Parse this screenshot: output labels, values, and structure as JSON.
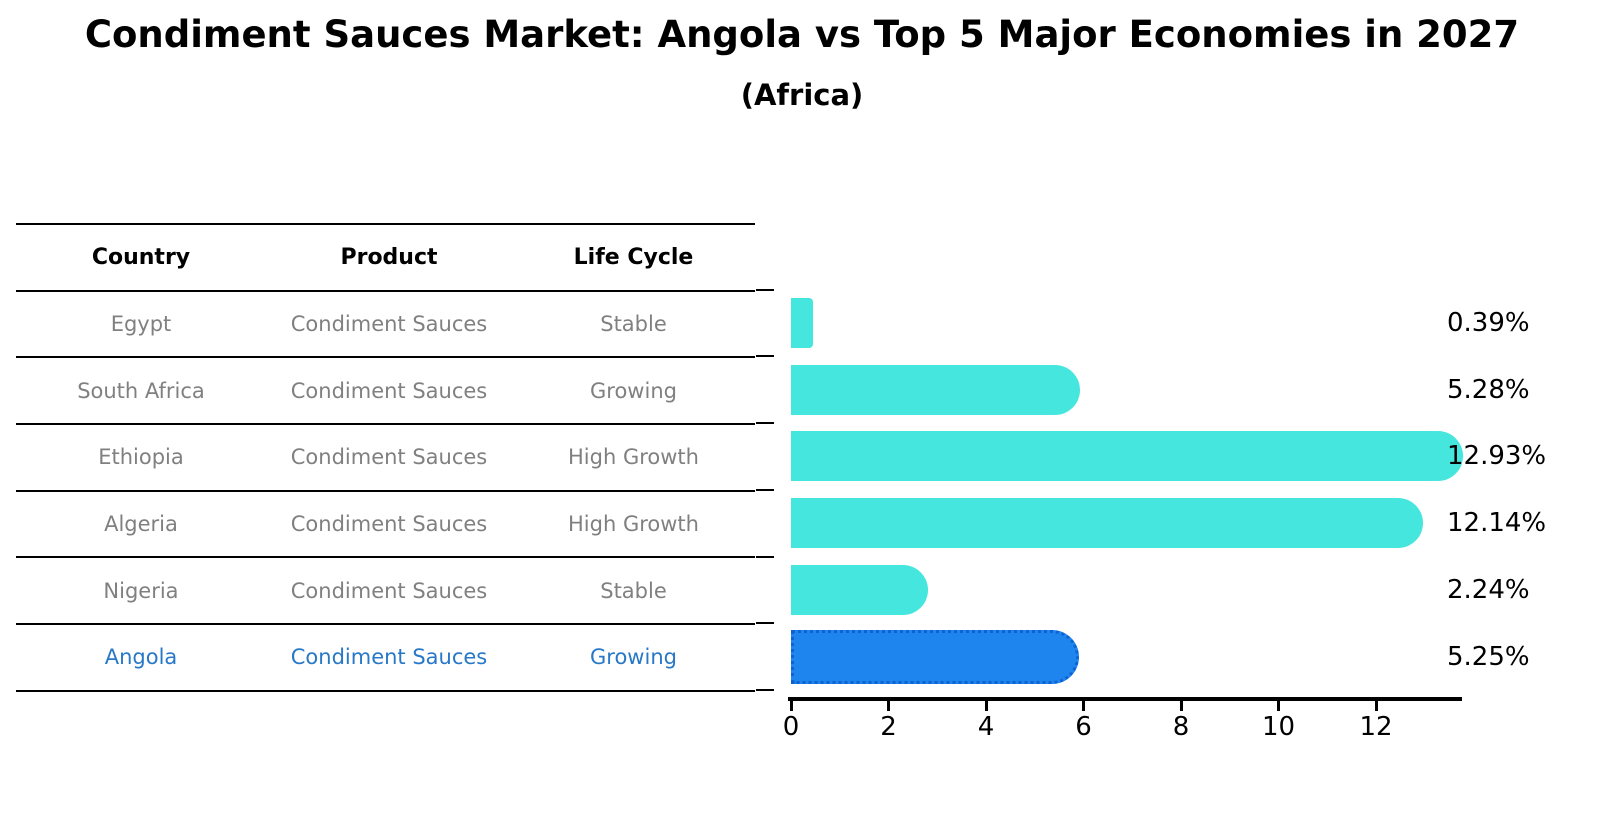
{
  "title": "Condiment Sauces Market: Angola vs Top 5 Major Economies in 2027",
  "subtitle": "(Africa)",
  "table": {
    "headers": [
      "Country",
      "Product",
      "Life Cycle"
    ],
    "rows": [
      {
        "country": "Egypt",
        "product": "Condiment Sauces",
        "life_cycle": "Stable"
      },
      {
        "country": "South Africa",
        "product": "Condiment Sauces",
        "life_cycle": "Growing"
      },
      {
        "country": "Ethiopia",
        "product": "Condiment Sauces",
        "life_cycle": "High Growth"
      },
      {
        "country": "Algeria",
        "product": "Condiment Sauces",
        "life_cycle": "High Growth"
      },
      {
        "country": "Nigeria",
        "product": "Condiment Sauces",
        "life_cycle": "Stable"
      },
      {
        "country": "Angola",
        "product": "Condiment Sauces",
        "life_cycle": "Growing"
      }
    ],
    "highlight_row": "Angola"
  },
  "chart_data": {
    "type": "bar",
    "orientation": "horizontal",
    "categories": [
      "Egypt",
      "South Africa",
      "Ethiopia",
      "Algeria",
      "Nigeria",
      "Angola"
    ],
    "values": [
      0.39,
      5.28,
      12.93,
      12.14,
      2.24,
      5.25
    ],
    "value_labels": [
      "0.39%",
      "5.28%",
      "12.93%",
      "12.14%",
      "2.24%",
      "5.25%"
    ],
    "x_ticks": [
      "0",
      "2",
      "4",
      "6",
      "8",
      "10",
      "12"
    ],
    "xlim": [
      0,
      13.6
    ],
    "xlabel": "",
    "ylabel": "",
    "grid": "off",
    "legend": "none",
    "highlight_index": 5,
    "colors": {
      "bar": "#45E6DD",
      "highlight_bar": "#1E84EE",
      "highlight_border": "#0E63D2",
      "highlight_text": "#2878C8",
      "cell_text": "#808080",
      "header_text": "#000000",
      "axis": "#000000"
    }
  }
}
